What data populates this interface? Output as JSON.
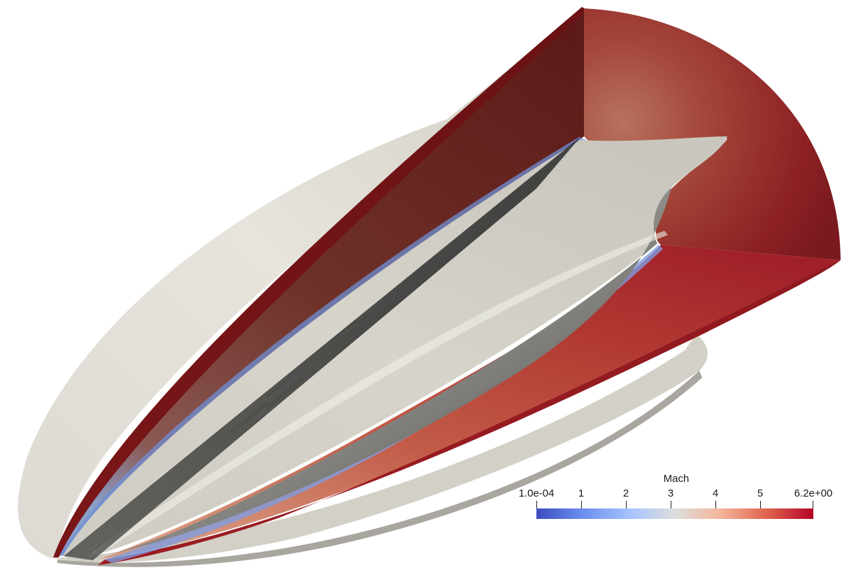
{
  "colorbar": {
    "title": "Mach",
    "ticks": [
      "1.0e-04",
      "1",
      "2",
      "3",
      "4",
      "5",
      "6.2e+00"
    ],
    "colors": {
      "low": "#3b4cc0",
      "mid": "#dddddd",
      "high": "#b40426"
    }
  },
  "scene": {
    "field": "Mach",
    "colors": {
      "body_surface": "#d4d2c8",
      "flow_high": "#8b1d22",
      "flow_mid": "#c0443a",
      "boundary_layer": "#7090d8"
    }
  }
}
